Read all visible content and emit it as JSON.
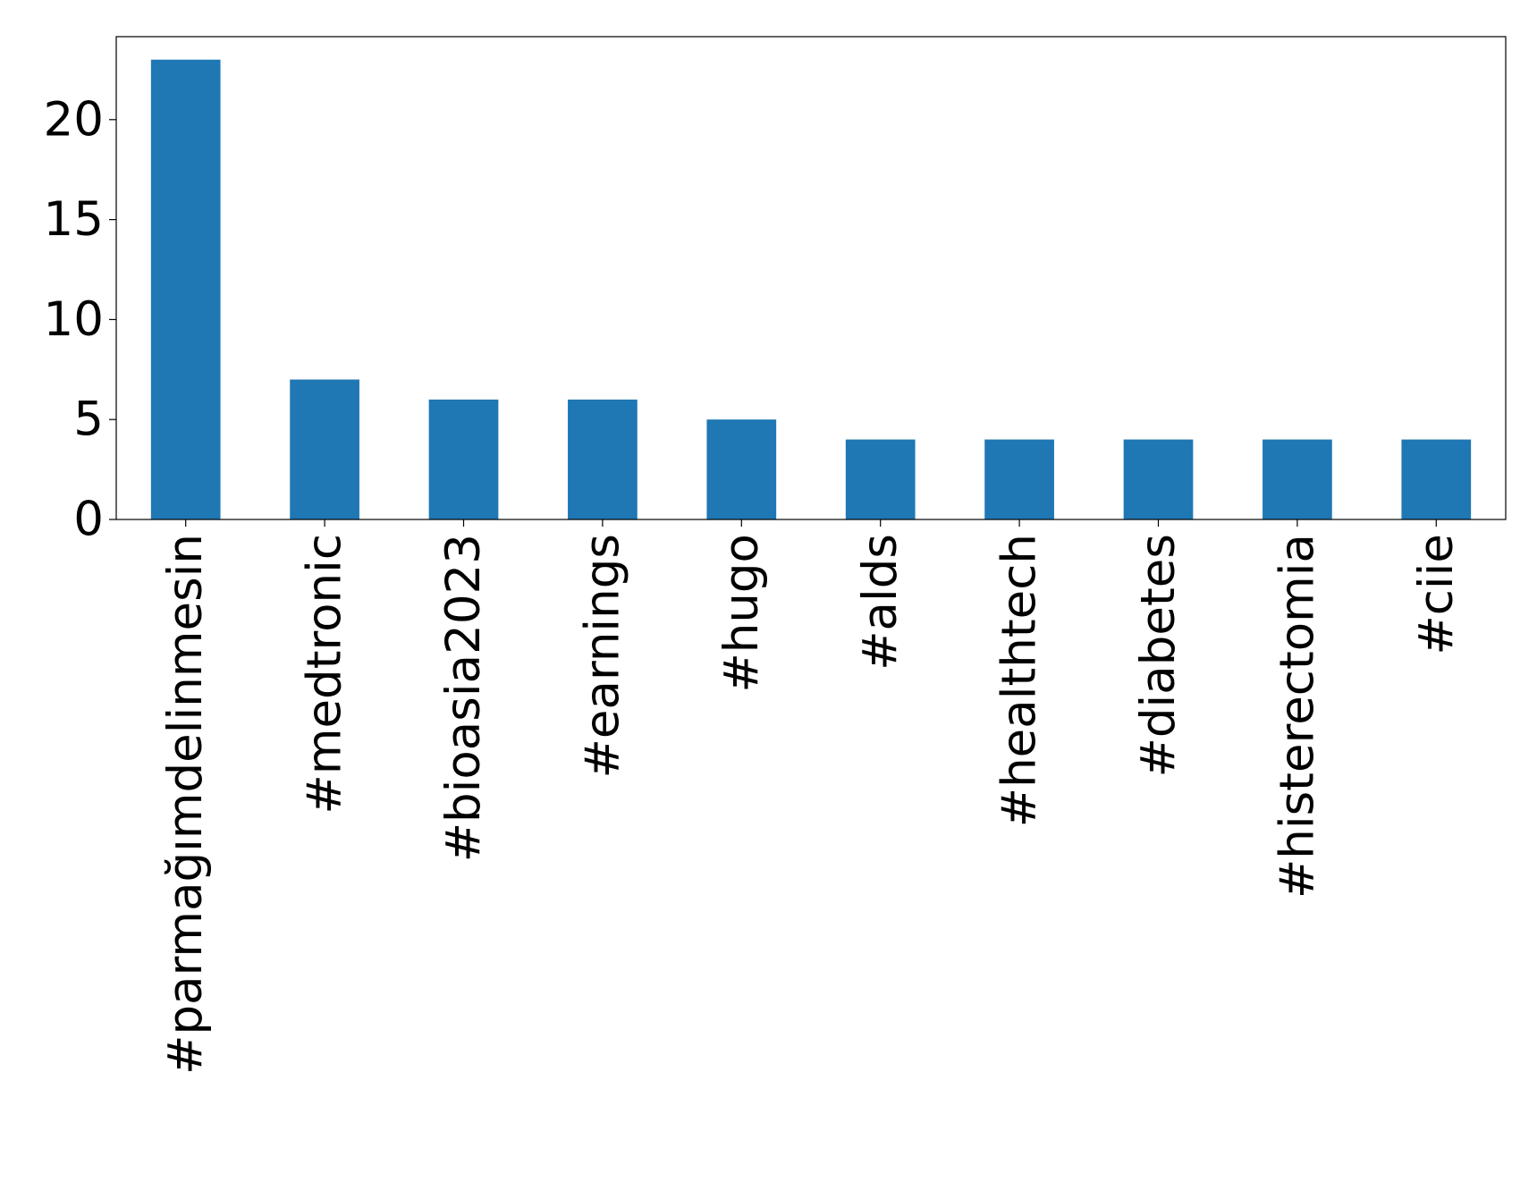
{
  "chart_data": {
    "type": "bar",
    "categories": [
      "#parmağımdelinmesin",
      "#medtronic",
      "#bioasia2023",
      "#earnings",
      "#hugo",
      "#alds",
      "#healthtech",
      "#diabetes",
      "#histerectomia",
      "#ciie"
    ],
    "values": [
      23,
      7,
      6,
      6,
      5,
      4,
      4,
      4,
      4,
      4
    ],
    "color": "#1f77b4",
    "ylim": [
      0,
      24.15
    ],
    "yticks": [
      0,
      5,
      10,
      15,
      20
    ],
    "grid": false
  }
}
